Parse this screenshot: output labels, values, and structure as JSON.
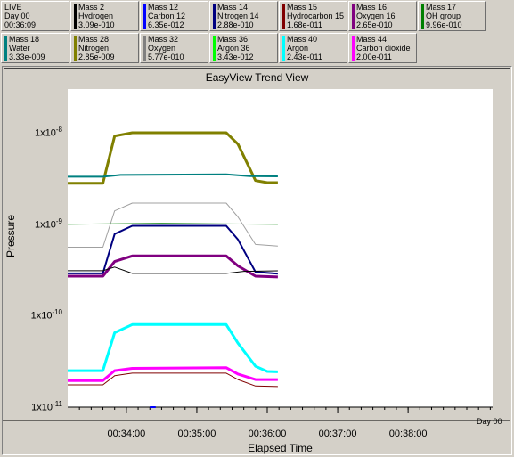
{
  "live": {
    "line1": "LIVE",
    "line2": "Day 00",
    "line3": "00:36:09"
  },
  "masses_row1": [
    {
      "mass": "Mass 2",
      "name": "Hydrogen",
      "value": "3.09e-010",
      "color": "#000000"
    },
    {
      "mass": "Mass 12",
      "name": "Carbon 12",
      "value": "6.35e-012",
      "color": "#0000ff"
    },
    {
      "mass": "Mass 14",
      "name": "Nitrogen 14",
      "value": "2.88e-010",
      "color": "#000080"
    },
    {
      "mass": "Mass 15",
      "name": "Hydrocarbon 15",
      "value": "1.68e-011",
      "color": "#800000"
    },
    {
      "mass": "Mass 16",
      "name": "Oxygen 16",
      "value": "2.65e-010",
      "color": "#800080"
    },
    {
      "mass": "Mass 17",
      "name": "OH group",
      "value": "9.96e-010",
      "color": "#008000"
    }
  ],
  "masses_row2": [
    {
      "mass": "Mass 18",
      "name": "Water",
      "value": "3.33e-009",
      "color": "#008080"
    },
    {
      "mass": "Mass 28",
      "name": "Nitrogen",
      "value": "2.85e-009",
      "color": "#808000"
    },
    {
      "mass": "Mass 32",
      "name": "Oxygen",
      "value": "5.77e-010",
      "color": "#808080"
    },
    {
      "mass": "Mass 36",
      "name": "Argon 36",
      "value": "3.43e-012",
      "color": "#00ff00"
    },
    {
      "mass": "Mass 40",
      "name": "Argon",
      "value": "2.43e-011",
      "color": "#00ffff"
    },
    {
      "mass": "Mass 44",
      "name": "Carbon dioxide",
      "value": "2.00e-011",
      "color": "#ff00ff"
    }
  ],
  "chart_title": "EasyView Trend View",
  "chart_data": {
    "type": "line",
    "title": "EasyView Trend View",
    "xlabel": "Elapsed Time",
    "ylabel": "Pressure",
    "y_scale": "log",
    "ylim": [
      1e-11,
      3e-08
    ],
    "y_ticks": [
      {
        "base": "1x10",
        "exp": "-8"
      },
      {
        "base": "1x10",
        "exp": "-9"
      },
      {
        "base": "1x10",
        "exp": "-10"
      },
      {
        "base": "1x10",
        "exp": "-11"
      }
    ],
    "xlim": [
      "00:33:10",
      "00:39:12"
    ],
    "x_ticks": [
      "00:34:00",
      "00:35:00",
      "00:36:00",
      "00:37:00",
      "00:38:00"
    ],
    "x_secondary_label": "Day 00",
    "grid": false,
    "background": "#ffffff",
    "series": [
      {
        "name": "Mass 28",
        "color": "#808000",
        "width": 3,
        "points": [
          [
            "00:33:10",
            2.8e-09
          ],
          [
            "00:33:40",
            2.8e-09
          ],
          [
            "00:33:50",
            9.2e-09
          ],
          [
            "00:34:05",
            1e-08
          ],
          [
            "00:35:25",
            1e-08
          ],
          [
            "00:35:35",
            7.5e-09
          ],
          [
            "00:35:50",
            3e-09
          ],
          [
            "00:36:00",
            2.85e-09
          ],
          [
            "00:36:09",
            2.85e-09
          ]
        ]
      },
      {
        "name": "Mass 18",
        "color": "#008080",
        "width": 2,
        "points": [
          [
            "00:33:10",
            3.3e-09
          ],
          [
            "00:33:40",
            3.3e-09
          ],
          [
            "00:33:55",
            3.45e-09
          ],
          [
            "00:35:25",
            3.5e-09
          ],
          [
            "00:35:45",
            3.35e-09
          ],
          [
            "00:36:09",
            3.33e-09
          ]
        ]
      },
      {
        "name": "Mass 32",
        "color": "#a0a0a0",
        "width": 1,
        "points": [
          [
            "00:33:10",
            5.6e-10
          ],
          [
            "00:33:40",
            5.6e-10
          ],
          [
            "00:33:50",
            1.4e-09
          ],
          [
            "00:34:05",
            1.7e-09
          ],
          [
            "00:35:25",
            1.7e-09
          ],
          [
            "00:35:35",
            1.2e-09
          ],
          [
            "00:35:50",
            6e-10
          ],
          [
            "00:36:09",
            5.77e-10
          ]
        ]
      },
      {
        "name": "Mass 17",
        "color": "#008000",
        "width": 1,
        "points": [
          [
            "00:33:10",
            1e-09
          ],
          [
            "00:34:30",
            1.02e-09
          ],
          [
            "00:36:09",
            9.96e-10
          ]
        ]
      },
      {
        "name": "Mass 14",
        "color": "#000080",
        "width": 2,
        "points": [
          [
            "00:33:10",
            2.9e-10
          ],
          [
            "00:33:40",
            2.9e-10
          ],
          [
            "00:33:50",
            7.8e-10
          ],
          [
            "00:34:05",
            9.6e-10
          ],
          [
            "00:35:25",
            9.6e-10
          ],
          [
            "00:35:35",
            6.8e-10
          ],
          [
            "00:35:50",
            3e-10
          ],
          [
            "00:36:09",
            2.88e-10
          ]
        ]
      },
      {
        "name": "Mass 16",
        "color": "#800080",
        "width": 3,
        "points": [
          [
            "00:33:10",
            2.7e-10
          ],
          [
            "00:33:40",
            2.7e-10
          ],
          [
            "00:33:50",
            3.9e-10
          ],
          [
            "00:34:05",
            4.5e-10
          ],
          [
            "00:35:25",
            4.5e-10
          ],
          [
            "00:35:35",
            3.5e-10
          ],
          [
            "00:35:50",
            2.7e-10
          ],
          [
            "00:36:09",
            2.65e-10
          ]
        ]
      },
      {
        "name": "Mass 2",
        "color": "#000000",
        "width": 1,
        "points": [
          [
            "00:33:10",
            3.1e-10
          ],
          [
            "00:33:40",
            3.1e-10
          ],
          [
            "00:33:50",
            3.4e-10
          ],
          [
            "00:34:05",
            2.9e-10
          ],
          [
            "00:35:25",
            2.9e-10
          ],
          [
            "00:35:40",
            3.05e-10
          ],
          [
            "00:36:09",
            3.09e-10
          ]
        ]
      },
      {
        "name": "Mass 40",
        "color": "#00ffff",
        "width": 3,
        "points": [
          [
            "00:33:10",
            2.5e-11
          ],
          [
            "00:33:40",
            2.5e-11
          ],
          [
            "00:33:50",
            6.5e-11
          ],
          [
            "00:34:05",
            8e-11
          ],
          [
            "00:35:25",
            8e-11
          ],
          [
            "00:35:35",
            5e-11
          ],
          [
            "00:35:50",
            2.8e-11
          ],
          [
            "00:36:00",
            2.45e-11
          ],
          [
            "00:36:09",
            2.43e-11
          ]
        ]
      },
      {
        "name": "Mass 44",
        "color": "#ff00ff",
        "width": 3,
        "points": [
          [
            "00:33:10",
            1.95e-11
          ],
          [
            "00:33:40",
            1.95e-11
          ],
          [
            "00:33:50",
            2.5e-11
          ],
          [
            "00:34:05",
            2.65e-11
          ],
          [
            "00:35:25",
            2.7e-11
          ],
          [
            "00:35:35",
            2.3e-11
          ],
          [
            "00:35:50",
            2e-11
          ],
          [
            "00:36:09",
            2e-11
          ]
        ]
      },
      {
        "name": "Mass 15",
        "color": "#800000",
        "width": 1,
        "points": [
          [
            "00:33:10",
            1.75e-11
          ],
          [
            "00:33:40",
            1.75e-11
          ],
          [
            "00:33:50",
            2.2e-11
          ],
          [
            "00:34:05",
            2.35e-11
          ],
          [
            "00:35:25",
            2.35e-11
          ],
          [
            "00:35:35",
            2e-11
          ],
          [
            "00:35:50",
            1.7e-11
          ],
          [
            "00:36:09",
            1.68e-11
          ]
        ]
      },
      {
        "name": "Mass 12",
        "color": "#0000ff",
        "width": 2,
        "points": [
          [
            "00:34:20",
            1e-11
          ],
          [
            "00:34:25",
            1e-11
          ]
        ]
      }
    ]
  }
}
